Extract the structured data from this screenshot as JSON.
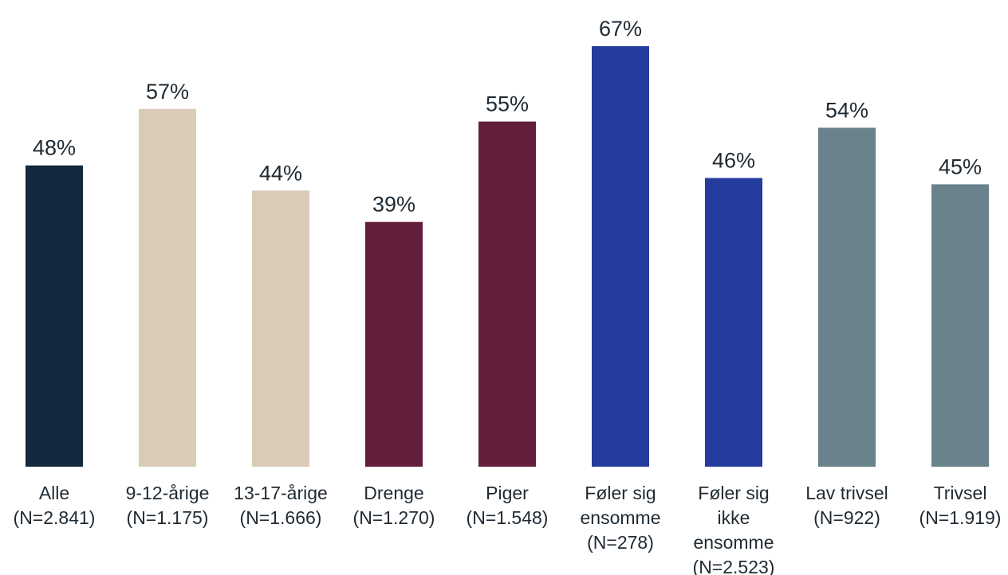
{
  "chart_data": {
    "type": "bar",
    "title": "",
    "xlabel": "",
    "ylabel": "",
    "ylim": [
      0,
      67
    ],
    "grid": false,
    "legend": "none",
    "value_suffix": "%",
    "categories": [
      [
        "Alle",
        "(N=2.841)"
      ],
      [
        "9-12-årige",
        "(N=1.175)"
      ],
      [
        "13-17-årige",
        "(N=1.666)"
      ],
      [
        "Drenge",
        "(N=1.270)"
      ],
      [
        "Piger",
        "(N=1.548)"
      ],
      [
        "Føler sig",
        "ensomme",
        "(N=278)"
      ],
      [
        "Føler sig",
        "ikke",
        "ensomme",
        "(N=2.523)"
      ],
      [
        "Lav trivsel",
        "(N=922)"
      ],
      [
        "Trivsel",
        "(N=1.919)"
      ]
    ],
    "values": [
      48,
      57,
      44,
      39,
      55,
      67,
      46,
      54,
      45
    ],
    "value_labels": [
      "48%",
      "57%",
      "44%",
      "39%",
      "55%",
      "67%",
      "46%",
      "54%",
      "45%"
    ],
    "colors": [
      "#14293d",
      "#d9cbb5",
      "#d9cbb5",
      "#621e3b",
      "#621e3b",
      "#253c9f",
      "#253c9f",
      "#6a828b",
      "#6a828b"
    ]
  }
}
